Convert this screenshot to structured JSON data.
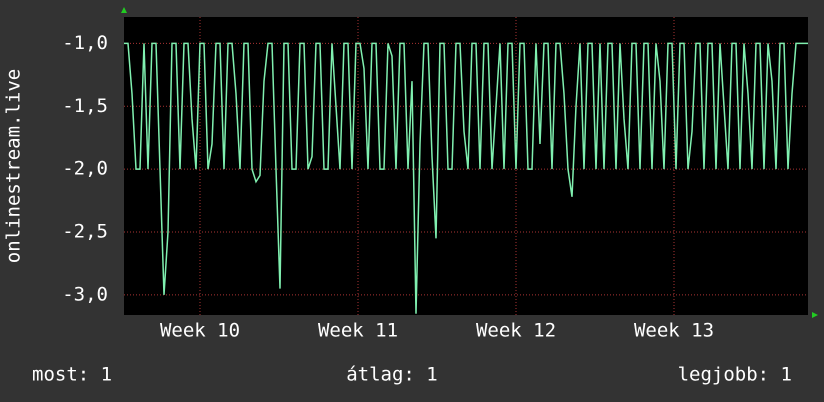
{
  "chart_data": {
    "type": "line",
    "y_label": "onlinestream.live",
    "xlim": [
      0,
      171
    ],
    "xticks": [
      {
        "value": 19,
        "label": "Week 10"
      },
      {
        "value": 58.5,
        "label": "Week 11"
      },
      {
        "value": 98,
        "label": "Week 12"
      },
      {
        "value": 137.5,
        "label": "Week 13"
      }
    ],
    "ylim": [
      -3.16,
      -0.79
    ],
    "yticks": [
      {
        "value": -1,
        "label": "-1,0"
      },
      {
        "value": -1.5,
        "label": "-1,5"
      },
      {
        "value": -2,
        "label": "-2,0"
      },
      {
        "value": -2.5,
        "label": "-2,5"
      },
      {
        "value": -3,
        "label": "-3,0"
      }
    ],
    "grid": true,
    "series": [
      {
        "color": "#80f0b0",
        "values": [
          -1,
          -1,
          -1.4,
          -2,
          -2,
          -1,
          -2,
          -1,
          -1,
          -2,
          -3,
          -2.5,
          -1,
          -1,
          -2,
          -1,
          -1,
          -1.6,
          -2,
          -1,
          -1,
          -2,
          -1.8,
          -1,
          -1,
          -2,
          -1,
          -1,
          -1.4,
          -2,
          -1,
          -1,
          -2,
          -2.1,
          -2.05,
          -1.3,
          -1,
          -1,
          -2,
          -2.95,
          -1,
          -1,
          -2,
          -2,
          -1,
          -1,
          -2,
          -1.9,
          -1,
          -1,
          -2,
          -2,
          -1,
          -1.5,
          -2,
          -1,
          -1,
          -2,
          -1,
          -1,
          -1.2,
          -2,
          -1,
          -1,
          -2,
          -2,
          -1,
          -1.1,
          -2,
          -1,
          -1,
          -2,
          -1.3,
          -3.15,
          -1.8,
          -1,
          -1,
          -1.9,
          -2.55,
          -1,
          -1,
          -2,
          -2,
          -1,
          -1,
          -1.7,
          -2,
          -1,
          -1,
          -2,
          -1,
          -1,
          -2,
          -1.5,
          -1,
          -2,
          -1,
          -1,
          -2,
          -1,
          -1,
          -2,
          -2,
          -1,
          -1.8,
          -1,
          -1,
          -2,
          -1,
          -1,
          -1.4,
          -2,
          -2.22,
          -1.5,
          -1,
          -2,
          -1,
          -1,
          -2,
          -1,
          -2,
          -1,
          -1,
          -2,
          -1,
          -1.6,
          -2,
          -1,
          -1,
          -2,
          -1,
          -1,
          -2,
          -1,
          -1.3,
          -2,
          -1,
          -1,
          -2,
          -1,
          -1,
          -2,
          -1.7,
          -1,
          -1,
          -2,
          -1,
          -1,
          -2,
          -1,
          -1.5,
          -2,
          -1,
          -1,
          -2,
          -1,
          -1.4,
          -2,
          -1,
          -1,
          -2,
          -1,
          -1.3,
          -2,
          -1,
          -1,
          -2,
          -1.4,
          -1,
          -1,
          -1,
          -1
        ]
      }
    ],
    "footer": [
      "most: 1",
      "átlag: 1",
      "legjobb: 1"
    ]
  }
}
